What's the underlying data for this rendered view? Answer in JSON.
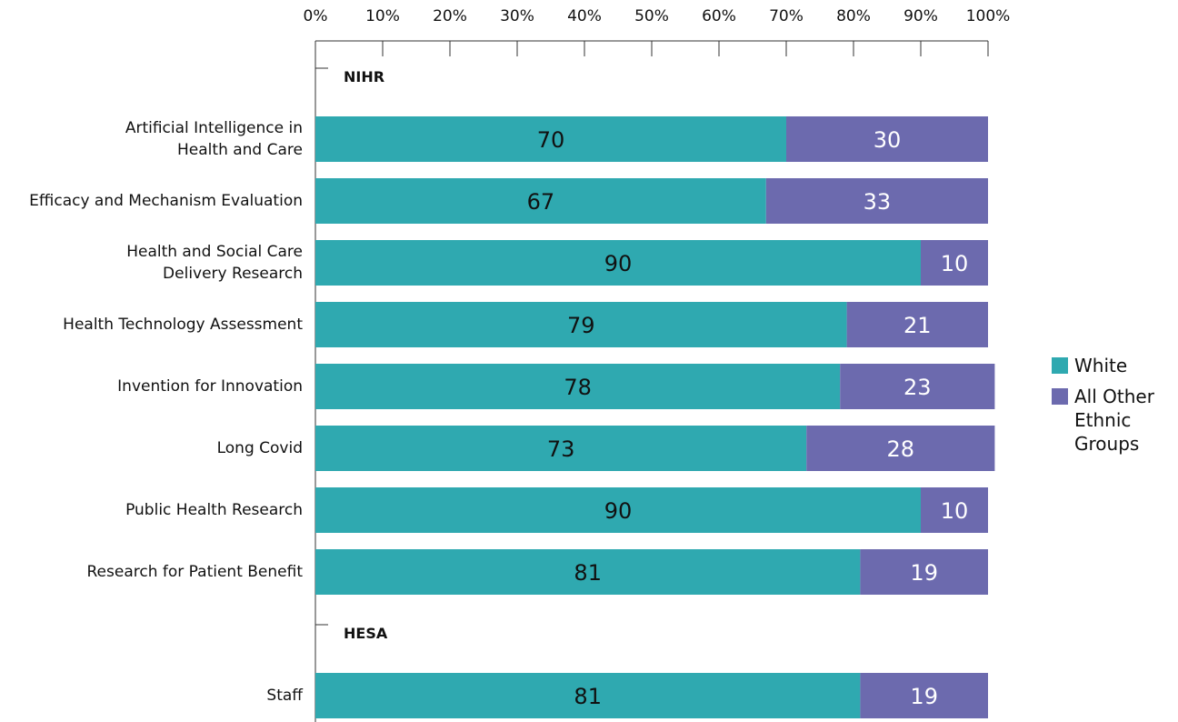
{
  "chart_data": {
    "type": "stacked_bar_horizontal",
    "categories": [
      "NIHR",
      "Artificial Intelligence in\nHealth and Care",
      "Efficacy and Mechanism Evaluation",
      "Health and Social Care\nDelivery Research",
      "Health Technology Assessment",
      "Invention for Innovation",
      "Long Covid",
      "Public Health Research",
      "Research for Patient Benefit",
      "HESA",
      "Staff"
    ],
    "series": [
      {
        "name": "White",
        "color": "#2fa9b0",
        "values": [
          null,
          70,
          67,
          90,
          79,
          78,
          73,
          90,
          81,
          null,
          81
        ]
      },
      {
        "name": "All Other Ethnic Groups",
        "color": "#6c6aae",
        "values": [
          null,
          30,
          33,
          10,
          21,
          23,
          28,
          10,
          19,
          null,
          19
        ]
      }
    ],
    "xlim": [
      0,
      100
    ],
    "xticks": [
      {
        "value": 0,
        "label": "0%"
      },
      {
        "value": 10,
        "label": "10%"
      },
      {
        "value": 20,
        "label": "20%"
      },
      {
        "value": 30,
        "label": "30%"
      },
      {
        "value": 40,
        "label": "40%"
      },
      {
        "value": 50,
        "label": "50%"
      },
      {
        "value": 60,
        "label": "60%"
      },
      {
        "value": 70,
        "label": "70%"
      },
      {
        "value": 80,
        "label": "80%"
      },
      {
        "value": 90,
        "label": "90%"
      },
      {
        "value": 100,
        "label": "100%"
      }
    ],
    "legend": "right"
  }
}
